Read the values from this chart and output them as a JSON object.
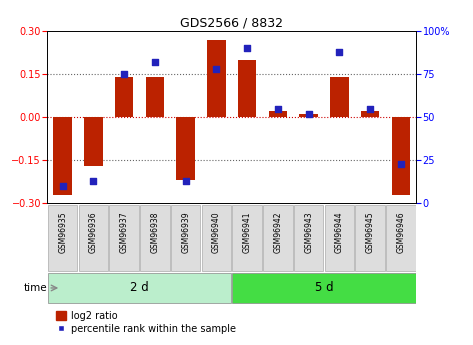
{
  "title": "GDS2566 / 8832",
  "samples": [
    "GSM96935",
    "GSM96936",
    "GSM96937",
    "GSM96938",
    "GSM96939",
    "GSM96940",
    "GSM96941",
    "GSM96942",
    "GSM96943",
    "GSM96944",
    "GSM96945",
    "GSM96946"
  ],
  "log2_ratio": [
    -0.27,
    -0.17,
    0.14,
    0.14,
    -0.22,
    0.27,
    0.2,
    0.02,
    0.01,
    0.14,
    0.02,
    -0.27
  ],
  "pct_rank": [
    10,
    13,
    75,
    82,
    13,
    78,
    90,
    55,
    52,
    88,
    55,
    23
  ],
  "ylim_left": [
    -0.3,
    0.3
  ],
  "ylim_right": [
    0,
    100
  ],
  "yticks_left": [
    -0.3,
    -0.15,
    0,
    0.15,
    0.3
  ],
  "yticks_right": [
    0,
    25,
    50,
    75,
    100
  ],
  "hlines": [
    -0.15,
    0,
    0.15
  ],
  "group1_label": "2 d",
  "group2_label": "5 d",
  "group1_count": 6,
  "group2_count": 6,
  "bar_color": "#bb2200",
  "dot_color": "#2222bb",
  "group1_color": "#bbeecc",
  "group2_color": "#44dd44",
  "sample_box_color": "#dddddd",
  "sample_box_edge": "#aaaaaa",
  "bg_color": "#ffffff",
  "grid_color": "#666666",
  "zero_line_color": "#cc0000",
  "bar_width": 0.6,
  "legend_bar_label": "log2 ratio",
  "legend_dot_label": "percentile rank within the sample"
}
